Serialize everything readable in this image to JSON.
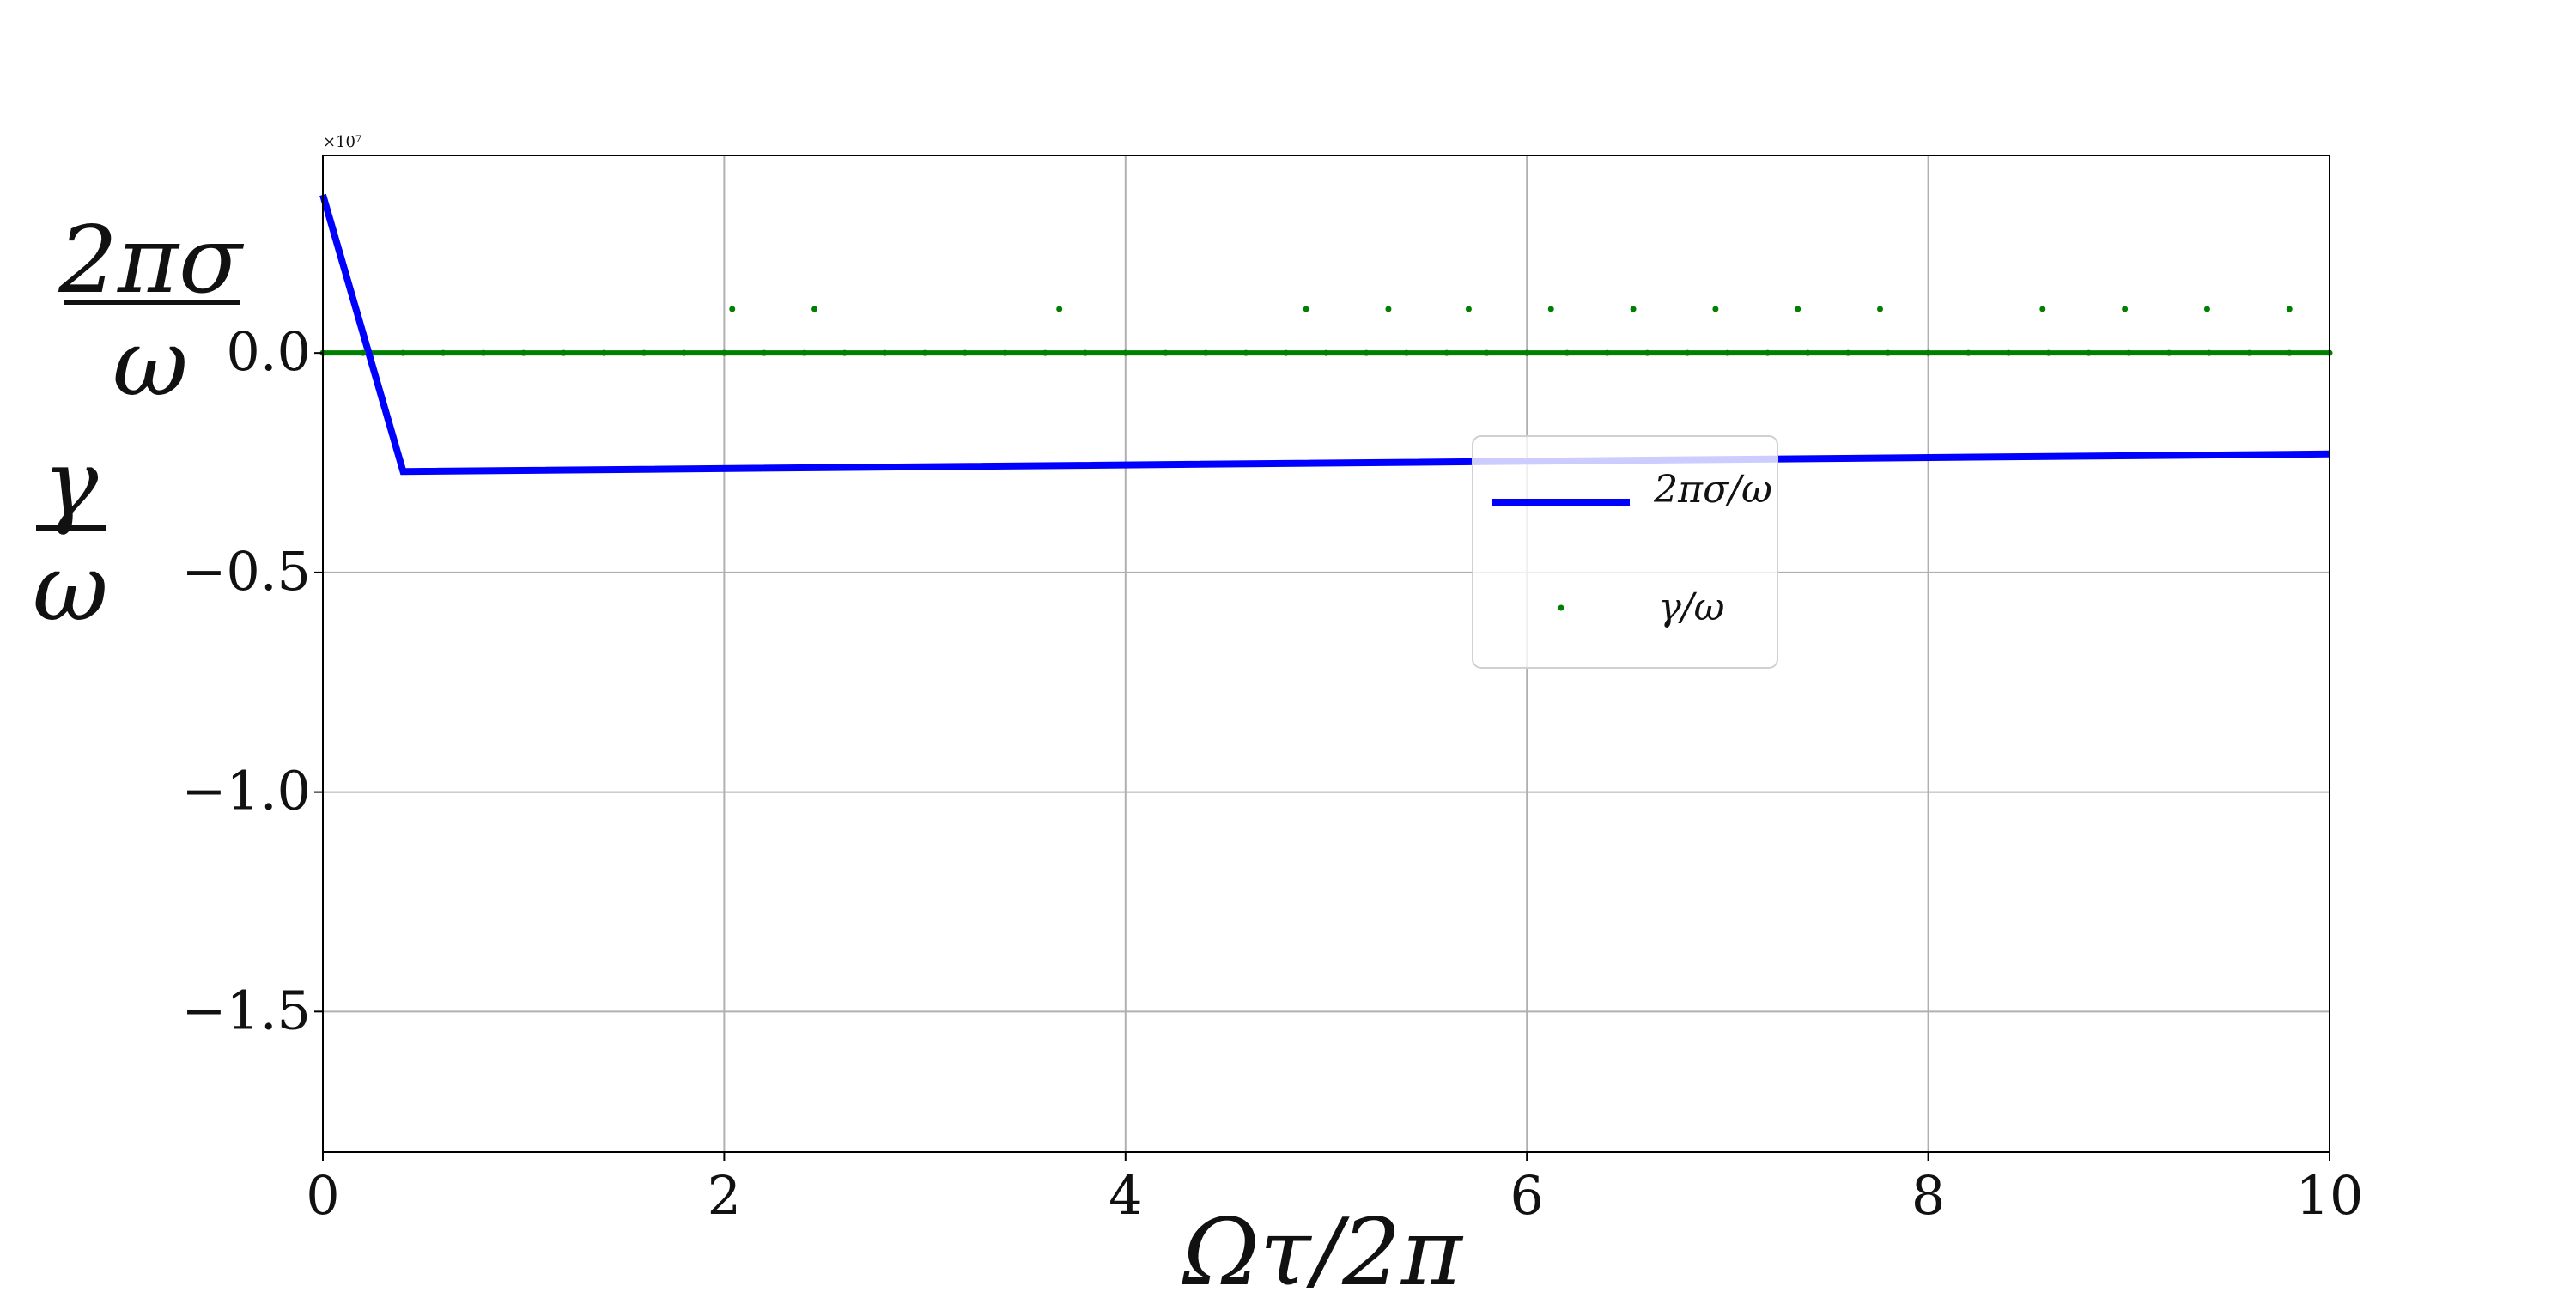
{
  "chart_data": {
    "type": "line",
    "xlabel": "Ωτ/2π",
    "ylabel": {
      "top": {
        "numerator": "2πσ",
        "denominator": "ω"
      },
      "bottom": {
        "numerator": "γ",
        "denominator": "ω"
      }
    },
    "multiplier": "×10⁷",
    "xlim": [
      0,
      10
    ],
    "ylim": [
      -1.82,
      0.45
    ],
    "x_ticks": [
      0,
      2,
      4,
      6,
      8,
      10
    ],
    "x_tick_labels": [
      "0",
      "2",
      "4",
      "6",
      "8",
      "10"
    ],
    "y_ticks": [
      0.0,
      -0.5,
      -1.0,
      -1.5
    ],
    "y_tick_labels": [
      "0.0",
      "−0.5",
      "−1.0",
      "−1.5"
    ],
    "grid": true,
    "legend_placement": "center-right",
    "series": [
      {
        "name": "2πσ/ω",
        "style": "line",
        "color": "#0000ff",
        "x": [
          0.0,
          0.4,
          10.0
        ],
        "y": [
          0.36,
          -0.27,
          -0.23
        ]
      },
      {
        "name": "γ/ω",
        "style": "dots",
        "color": "#008000",
        "x": [
          0.0,
          0.2,
          0.4,
          0.6,
          0.8,
          1.0,
          1.2,
          1.4,
          1.6,
          1.8,
          2.0,
          2.2,
          2.4,
          2.6,
          2.8,
          3.0,
          3.2,
          3.4,
          3.6,
          3.8,
          4.0,
          4.2,
          4.4,
          4.6,
          4.8,
          5.0,
          5.2,
          5.4,
          5.6,
          5.8,
          6.0,
          6.2,
          6.4,
          6.6,
          6.8,
          7.0,
          7.2,
          7.4,
          7.6,
          7.8,
          8.0,
          8.2,
          8.4,
          8.6,
          8.8,
          9.0,
          9.2,
          9.4,
          9.6,
          9.8,
          10.0,
          2.04,
          2.45,
          3.67,
          4.9,
          5.31,
          5.71,
          6.12,
          6.53,
          6.94,
          7.35,
          7.76,
          8.57,
          8.98,
          9.39,
          9.8
        ],
        "y": [
          0,
          0,
          0,
          0,
          0,
          0,
          0,
          0,
          0,
          0,
          0,
          0,
          0,
          0,
          0,
          0,
          0,
          0,
          0,
          0,
          0,
          0,
          0,
          0,
          0,
          0,
          0,
          0,
          0,
          0,
          0,
          0,
          0,
          0,
          0,
          0,
          0,
          0,
          0,
          0,
          0,
          0,
          0,
          0,
          0,
          0,
          0,
          0,
          0,
          0,
          0,
          0.1,
          0.1,
          0.1,
          0.1,
          0.1,
          0.1,
          0.1,
          0.1,
          0.1,
          0.1,
          0.1,
          0.1,
          0.1,
          0.1,
          0.1
        ]
      }
    ]
  }
}
